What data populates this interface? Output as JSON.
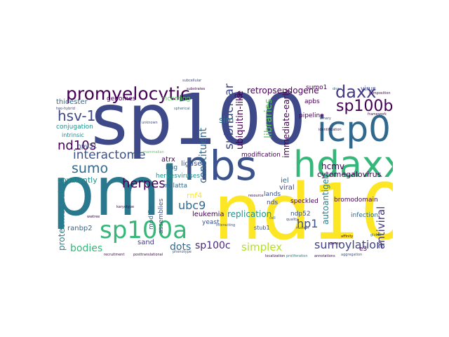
{
  "palette": {
    "purple": "#440154",
    "indigo": "#3e4989",
    "blue": "#31688e",
    "teal": "#26828e",
    "green": "#1f9e89",
    "lime": "#6ece58",
    "yellow": "#fde725"
  },
  "words": {
    "sp100": "sp100",
    "pml": "pml",
    "nd10": "nd10",
    "nbs": "nbs",
    "hdaxx": "hdaxx",
    "icp0": "icp0",
    "sp100a": "sp100a",
    "promyelocytic": "promyelocytic",
    "daxx": "daxx",
    "sp100b": "sp100b",
    "hsv1": "hsv-1",
    "nd10s": "nd10s",
    "interactome": "interactome",
    "sumo": "sumo",
    "herpes": "herpes",
    "constituent": "constituent",
    "subnuclear": "subnuclear",
    "ubiquitin_like": "ubiquitin-like",
    "sim": "sim",
    "libraries": "libraries",
    "immediate_early": "immediate-early",
    "hcmv": "hcmv",
    "cytomegalovirus": "cytomegalovirus",
    "ubc9": "ubc9",
    "hp1": "hp1",
    "antiviral": "antiviral",
    "autoantigen": "autoantigen",
    "sumoylation": "sumoylation",
    "simplex": "simplex",
    "sp100c": "sp100c",
    "bodies": "bodies",
    "dots": "dots",
    "proteome_scale": "proteome-scale",
    "ranbp2": "ranbp2",
    "covalently": "covalently",
    "replication": "replication",
    "retropseudogene": "retropseudogene",
    "thioester": "thioester",
    "conjugation": "conjugation",
    "intrinsic": "intrinsic",
    "hpv31": "hpv31",
    "genomes": "genomes",
    "incoming": "incoming",
    "ligase": "ligase",
    "atrx": "atrx",
    "hng": "hng",
    "herpesviruses": "herpesviruses",
    "modification": "modification",
    "iel": "iel",
    "viral": "viral",
    "lands": "lands",
    "speckled": "speckled",
    "bromodomain": "bromodomain",
    "nds": "nds",
    "ndp52": "ndp52",
    "leukemia": "leukemia",
    "sand": "sand",
    "mulatta": "mulatta",
    "rnf4": "rnf4",
    "yeast": "yeast",
    "modifier": "modifier",
    "assemblies": "assemblies",
    "sumo1": "sumo1",
    "apbs": "apbs",
    "pipeline": "pipeline",
    "infection": "infection",
    "virus": "virus",
    "e3": "e3",
    "nb": "nb",
    "stub1": "stub1",
    "subcellular": "subcellular",
    "substrates": "substrates",
    "binary": "binary",
    "identification": "identification",
    "unknown": "unknown",
    "dna": "dna",
    "composition": "composition",
    "framework": "framework",
    "spherical": "spherical",
    "resource": "resource",
    "quality": "quality",
    "affinity": "affinity",
    "global": "global",
    "recruitment": "recruitment",
    "posttranslational": "posttranslational",
    "phenotype": "phenotype",
    "localization": "localization",
    "proliferation": "proliferation",
    "aggregation": "aggregation",
    "annotations": "annotations",
    "two_hybrid": "two-hybrid",
    "mammalian": "mammalian",
    "wwtree": "wwtree",
    "genes": "genes",
    "nuclear": "nuclear",
    "cell": "cell",
    "interacting": "interacting",
    "karyotype": "karyotype"
  }
}
